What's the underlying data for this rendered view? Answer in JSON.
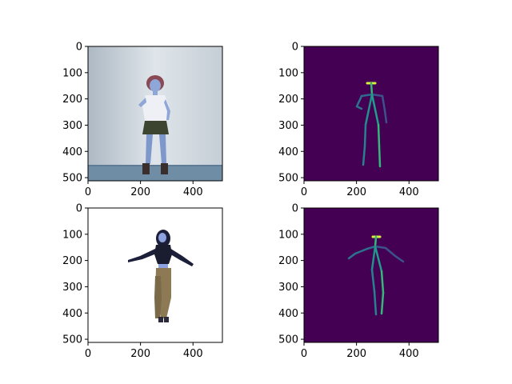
{
  "chart_data": [
    {
      "type": "image",
      "panel": "top-left",
      "content": "photo",
      "xlim": [
        0,
        512
      ],
      "ylim": [
        512,
        0
      ],
      "xticks": [
        0,
        200,
        400
      ],
      "yticks": [
        0,
        100,
        200,
        300,
        400,
        500
      ],
      "xtick_labels": [
        "0",
        "200",
        "400"
      ],
      "ytick_labels": [
        "0",
        "100",
        "200",
        "300",
        "400",
        "500"
      ],
      "title": "",
      "xlabel": "",
      "ylabel": ""
    },
    {
      "type": "image",
      "panel": "top-right",
      "content": "pose-skeleton",
      "xlim": [
        0,
        512
      ],
      "ylim": [
        512,
        0
      ],
      "xticks": [
        0,
        200,
        400
      ],
      "yticks": [
        0,
        100,
        200,
        300,
        400,
        500
      ],
      "xtick_labels": [
        "0",
        "200",
        "400"
      ],
      "ytick_labels": [
        "0",
        "100",
        "200",
        "300",
        "400",
        "500"
      ],
      "background_color": "#440154",
      "title": "",
      "xlabel": "",
      "ylabel": ""
    },
    {
      "type": "image",
      "panel": "bottom-left",
      "content": "photo",
      "xlim": [
        0,
        512
      ],
      "ylim": [
        512,
        0
      ],
      "xticks": [
        0,
        200,
        400
      ],
      "yticks": [
        0,
        100,
        200,
        300,
        400,
        500
      ],
      "xtick_labels": [
        "0",
        "200",
        "400"
      ],
      "ytick_labels": [
        "0",
        "100",
        "200",
        "300",
        "400",
        "500"
      ],
      "title": "",
      "xlabel": "",
      "ylabel": ""
    },
    {
      "type": "image",
      "panel": "bottom-right",
      "content": "pose-skeleton",
      "xlim": [
        0,
        512
      ],
      "ylim": [
        512,
        0
      ],
      "xticks": [
        0,
        200,
        400
      ],
      "yticks": [
        0,
        100,
        200,
        300,
        400,
        500
      ],
      "xtick_labels": [
        "0",
        "200",
        "400"
      ],
      "ytick_labels": [
        "0",
        "100",
        "200",
        "300",
        "400",
        "500"
      ],
      "background_color": "#440154",
      "title": "",
      "xlabel": "",
      "ylabel": ""
    }
  ],
  "colors": {
    "viridis_dark": "#440154",
    "viridis_blue": "#31688e",
    "viridis_teal": "#21918c",
    "viridis_green": "#35b779",
    "viridis_yellow": "#d8f03a"
  }
}
